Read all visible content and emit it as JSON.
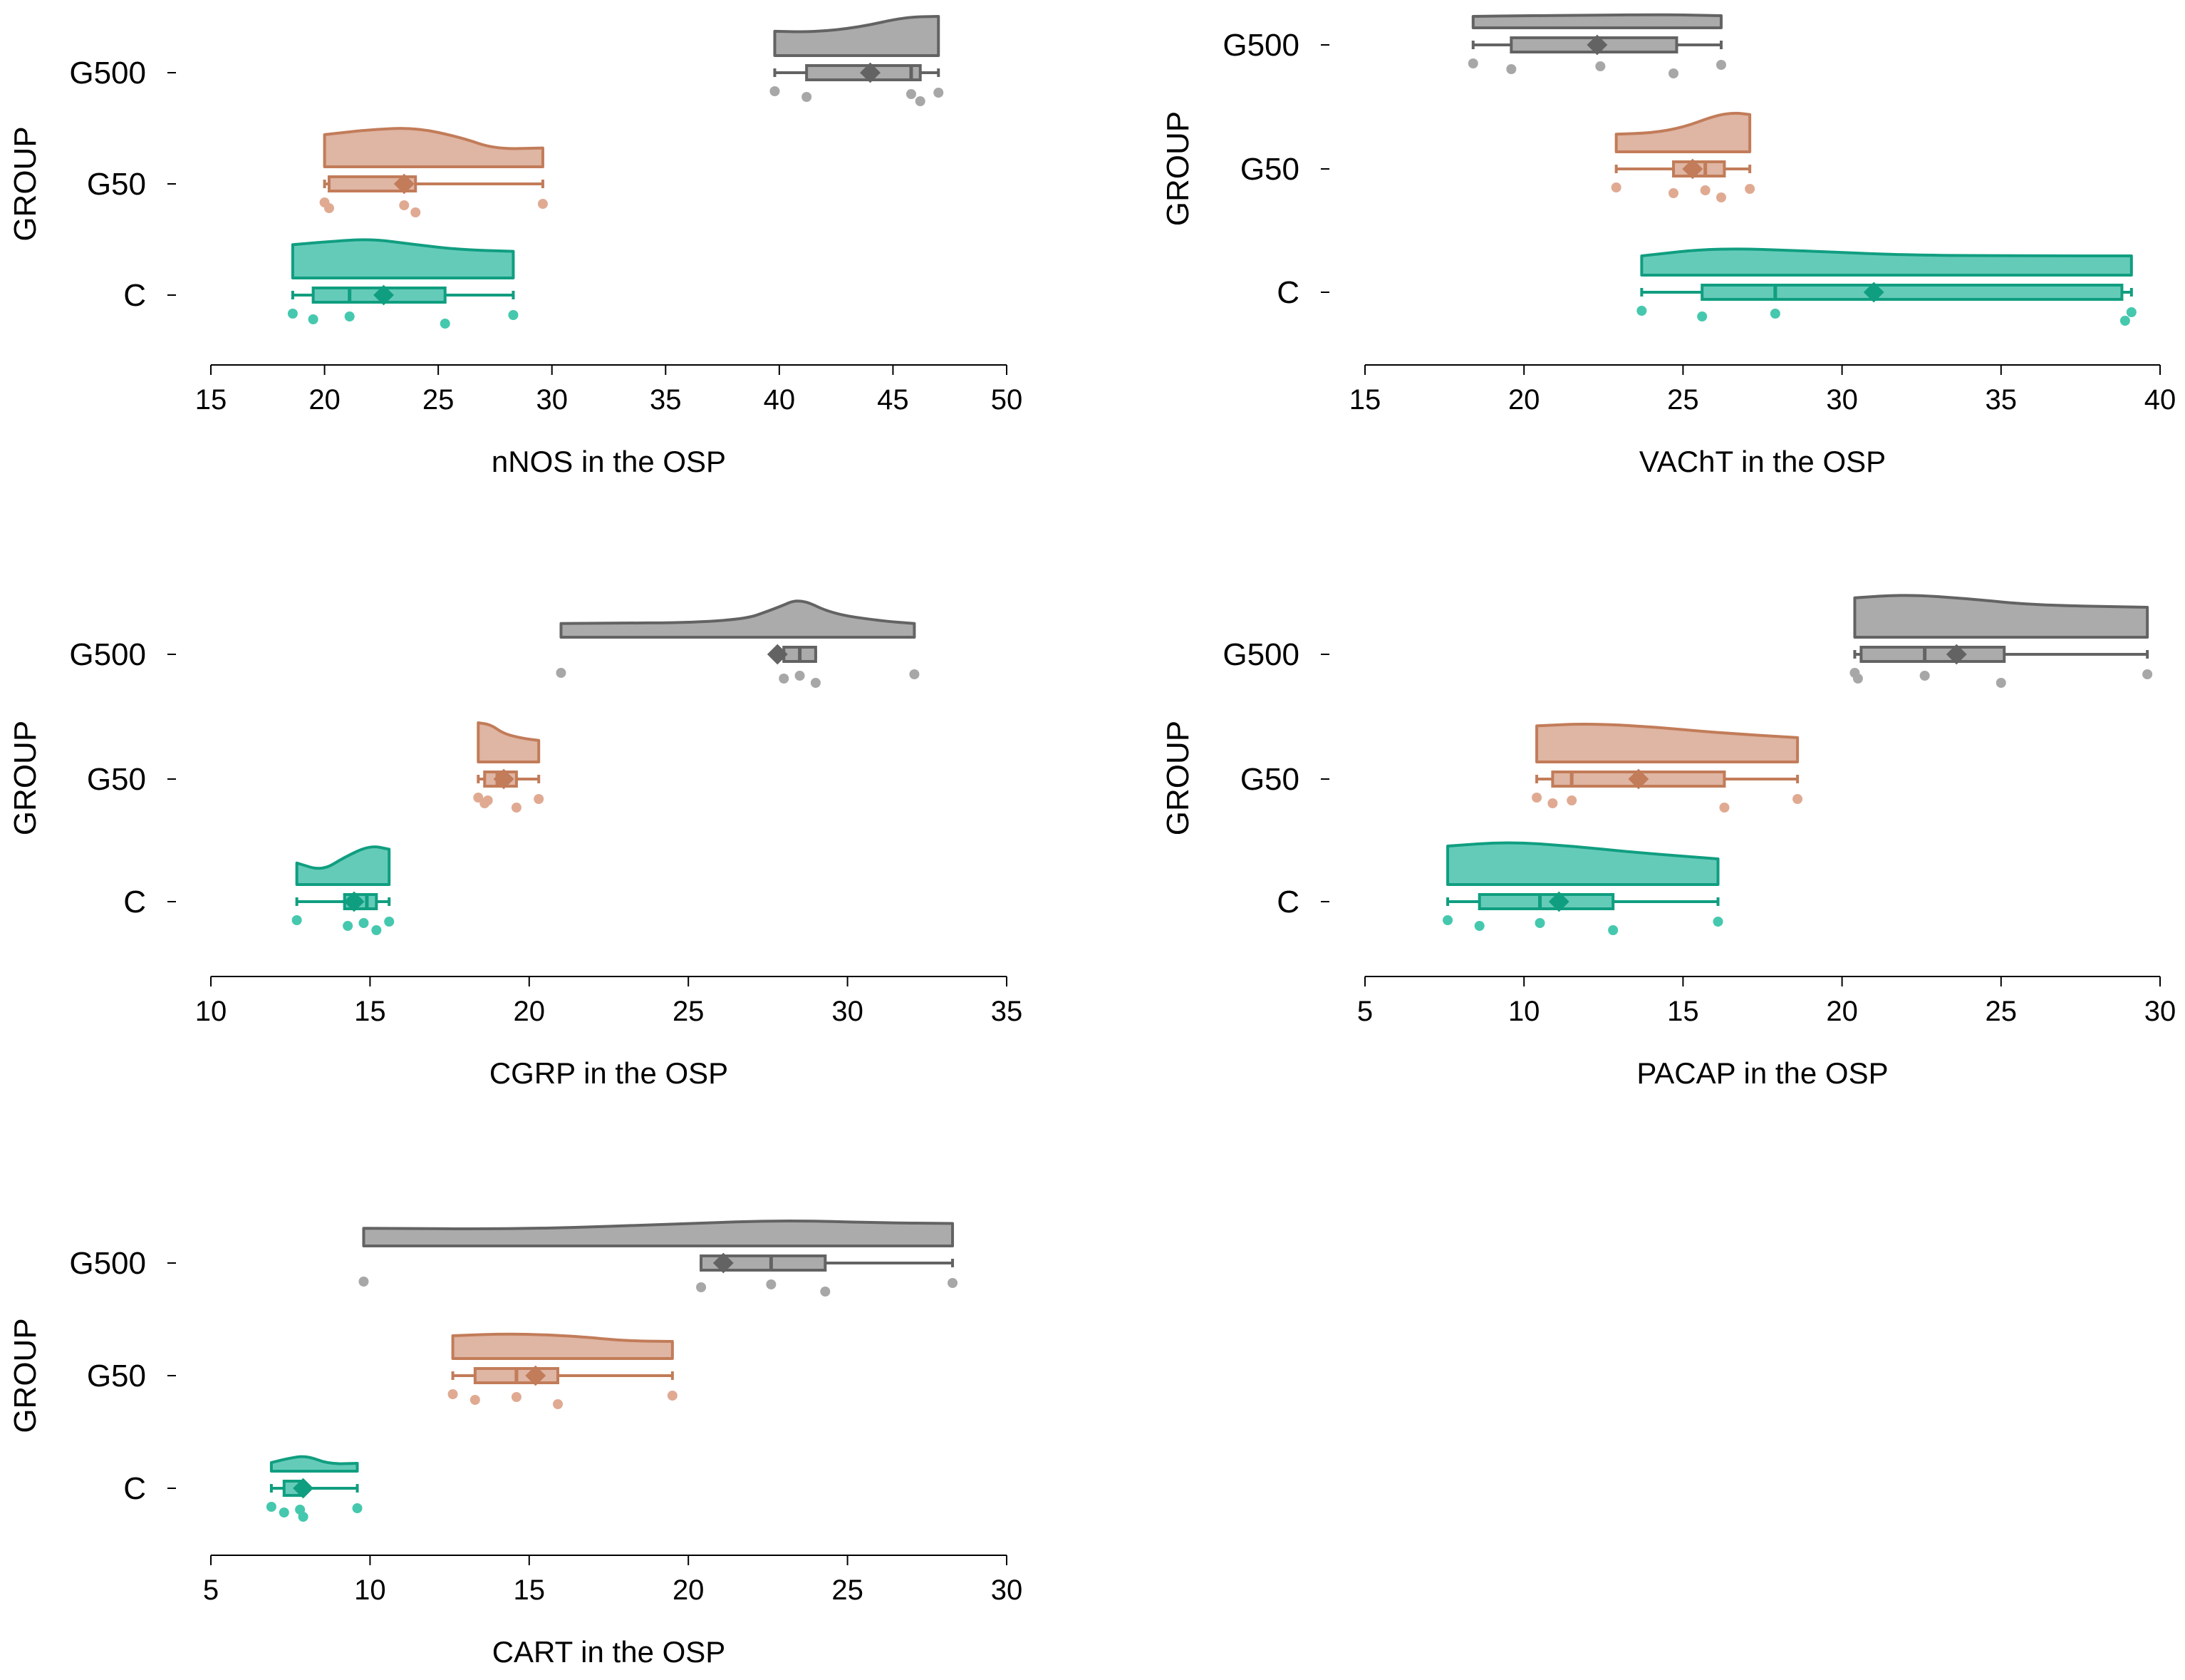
{
  "figure": {
    "group_axis_label": "GROUP",
    "colors": {
      "C": {
        "fill": "#65cbb9",
        "stroke": "#109e80",
        "point": "#45c8ae"
      },
      "G50": {
        "fill": "#dfb5a3",
        "stroke": "#c27c59",
        "point": "#e0aa92"
      },
      "G500": {
        "fill": "#ababab",
        "stroke": "#636363",
        "point": "#a7a7a7"
      },
      "axis": "#000000"
    }
  },
  "chart_data": [
    {
      "type": "raincloud",
      "xlabel": "nNOS in the OSP",
      "ylabel": "GROUP",
      "xlim": [
        15,
        50
      ],
      "xticks": [
        15,
        20,
        25,
        30,
        35,
        40,
        45,
        50
      ],
      "categories": [
        "C",
        "G50",
        "G500"
      ],
      "series": [
        {
          "name": "C",
          "points": [
            18.6,
            19.5,
            21.1,
            25.3,
            28.3
          ],
          "q1": 19.5,
          "median": 21.1,
          "q3": 25.3,
          "whisker_low": 18.6,
          "whisker_high": 28.3,
          "mean": 22.6,
          "density": [
            [
              18.6,
              0.85
            ],
            [
              20.0,
              0.92
            ],
            [
              22.0,
              1.0
            ],
            [
              24.0,
              0.85
            ],
            [
              26.0,
              0.72
            ],
            [
              28.3,
              0.68
            ]
          ]
        },
        {
          "name": "G50",
          "points": [
            20.0,
            20.2,
            23.5,
            24.0,
            29.6
          ],
          "q1": 20.2,
          "median": 23.5,
          "q3": 24.0,
          "whisker_low": 20.0,
          "whisker_high": 29.6,
          "mean": 23.5,
          "density": [
            [
              20.0,
              0.82
            ],
            [
              22.0,
              0.95
            ],
            [
              24.0,
              1.0
            ],
            [
              26.0,
              0.75
            ],
            [
              27.5,
              0.45
            ],
            [
              29.6,
              0.48
            ]
          ]
        },
        {
          "name": "G500",
          "points": [
            39.8,
            41.2,
            45.8,
            46.2,
            47.0
          ],
          "q1": 41.2,
          "median": 45.8,
          "q3": 46.2,
          "whisker_low": 39.8,
          "whisker_high": 47.0,
          "mean": 44.0,
          "density": [
            [
              39.8,
              0.62
            ],
            [
              41.5,
              0.6
            ],
            [
              43.5,
              0.72
            ],
            [
              45.5,
              0.98
            ],
            [
              47.0,
              1.0
            ]
          ]
        }
      ]
    },
    {
      "type": "raincloud",
      "xlabel": "VAChT in the OSP",
      "ylabel": "GROUP",
      "xlim": [
        15,
        40
      ],
      "xticks": [
        15,
        20,
        25,
        30,
        35,
        40
      ],
      "categories": [
        "C",
        "G50",
        "G500"
      ],
      "series": [
        {
          "name": "C",
          "points": [
            23.7,
            25.6,
            27.9,
            38.9,
            39.1
          ],
          "q1": 25.6,
          "median": 27.9,
          "q3": 38.8,
          "whisker_low": 23.7,
          "whisker_high": 39.1,
          "mean": 31.0,
          "density": [
            [
              23.7,
              0.6
            ],
            [
              26.0,
              0.85
            ],
            [
              29.0,
              0.75
            ],
            [
              32.0,
              0.62
            ],
            [
              36.0,
              0.6
            ],
            [
              39.1,
              0.6
            ]
          ]
        },
        {
          "name": "G50",
          "points": [
            22.9,
            24.7,
            25.7,
            26.2,
            27.1
          ],
          "q1": 24.7,
          "median": 25.7,
          "q3": 26.3,
          "whisker_low": 22.9,
          "whisker_high": 27.1,
          "mean": 25.3,
          "density": [
            [
              22.9,
              0.45
            ],
            [
              24.0,
              0.48
            ],
            [
              25.0,
              0.62
            ],
            [
              26.0,
              0.92
            ],
            [
              26.6,
              1.0
            ],
            [
              27.1,
              0.95
            ]
          ]
        },
        {
          "name": "G500",
          "points": [
            18.4,
            19.6,
            22.4,
            24.7,
            26.2
          ],
          "q1": 19.6,
          "median": 22.4,
          "q3": 24.8,
          "whisker_low": 18.4,
          "whisker_high": 26.2,
          "mean": 22.3,
          "density": [
            [
              18.4,
              0.8
            ],
            [
              20.0,
              0.85
            ],
            [
              22.0,
              0.88
            ],
            [
              24.0,
              0.92
            ],
            [
              25.0,
              0.9
            ],
            [
              26.2,
              0.85
            ]
          ]
        }
      ]
    },
    {
      "type": "raincloud",
      "xlabel": "CGRP in the OSP",
      "ylabel": "GROUP",
      "xlim": [
        10,
        35
      ],
      "xticks": [
        10,
        15,
        20,
        25,
        30,
        35
      ],
      "categories": [
        "C",
        "G50",
        "G500"
      ],
      "series": [
        {
          "name": "C",
          "points": [
            12.7,
            14.3,
            14.8,
            15.2,
            15.6
          ],
          "q1": 14.2,
          "median": 14.9,
          "q3": 15.2,
          "whisker_low": 12.7,
          "whisker_high": 15.6,
          "mean": 14.5,
          "density": [
            [
              12.7,
              0.55
            ],
            [
              13.5,
              0.35
            ],
            [
              14.2,
              0.7
            ],
            [
              15.0,
              1.0
            ],
            [
              15.6,
              0.9
            ]
          ]
        },
        {
          "name": "G50",
          "points": [
            18.4,
            18.6,
            18.7,
            19.6,
            20.3
          ],
          "q1": 18.6,
          "median": 19.0,
          "q3": 19.6,
          "whisker_low": 18.4,
          "whisker_high": 20.3,
          "mean": 19.2,
          "density": [
            [
              18.4,
              1.0
            ],
            [
              18.8,
              0.95
            ],
            [
              19.2,
              0.72
            ],
            [
              19.8,
              0.6
            ],
            [
              20.3,
              0.55
            ]
          ]
        },
        {
          "name": "G500",
          "points": [
            21.0,
            28.0,
            28.5,
            29.0,
            32.1
          ],
          "q1": 28.0,
          "median": 28.5,
          "q3": 29.0,
          "whisker_low": 28.0,
          "whisker_high": 29.0,
          "mean": 27.8,
          "density": [
            [
              21.0,
              0.35
            ],
            [
              26.5,
              0.38
            ],
            [
              27.8,
              0.75
            ],
            [
              28.5,
              1.0
            ],
            [
              29.5,
              0.6
            ],
            [
              31.0,
              0.42
            ],
            [
              32.1,
              0.35
            ]
          ]
        }
      ]
    },
    {
      "type": "raincloud",
      "xlabel": "PACAP in the OSP",
      "ylabel": "GROUP",
      "xlim": [
        5,
        30
      ],
      "xticks": [
        5,
        10,
        15,
        20,
        25,
        30
      ],
      "categories": [
        "C",
        "G50",
        "G500"
      ],
      "series": [
        {
          "name": "C",
          "points": [
            7.6,
            8.6,
            10.5,
            12.8,
            16.1
          ],
          "q1": 8.6,
          "median": 10.5,
          "q3": 12.8,
          "whisker_low": 7.6,
          "whisker_high": 16.1,
          "mean": 11.1,
          "density": [
            [
              7.6,
              0.9
            ],
            [
              9.5,
              1.0
            ],
            [
              11.5,
              0.9
            ],
            [
              13.5,
              0.75
            ],
            [
              16.1,
              0.6
            ]
          ]
        },
        {
          "name": "G50",
          "points": [
            10.4,
            10.9,
            11.5,
            16.3,
            18.6
          ],
          "q1": 10.9,
          "median": 11.5,
          "q3": 16.3,
          "whisker_low": 10.4,
          "whisker_high": 18.6,
          "mean": 13.6,
          "density": [
            [
              10.4,
              0.92
            ],
            [
              12.0,
              0.98
            ],
            [
              14.0,
              0.9
            ],
            [
              16.0,
              0.75
            ],
            [
              18.6,
              0.62
            ]
          ]
        },
        {
          "name": "G500",
          "points": [
            20.4,
            20.5,
            22.6,
            25.0,
            29.6
          ],
          "q1": 20.6,
          "median": 22.6,
          "q3": 25.1,
          "whisker_low": 20.4,
          "whisker_high": 29.6,
          "mean": 23.6,
          "density": [
            [
              20.4,
              0.92
            ],
            [
              22.0,
              1.0
            ],
            [
              24.0,
              0.9
            ],
            [
              26.0,
              0.75
            ],
            [
              29.6,
              0.7
            ]
          ]
        }
      ]
    },
    {
      "type": "raincloud",
      "xlabel": "CART in the OSP",
      "ylabel": "GROUP",
      "xlim": [
        5,
        30
      ],
      "xticks": [
        5,
        10,
        15,
        20,
        25,
        30
      ],
      "categories": [
        "C",
        "G50",
        "G500"
      ],
      "series": [
        {
          "name": "C",
          "points": [
            6.9,
            7.3,
            7.8,
            7.9,
            9.6
          ],
          "q1": 7.3,
          "median": 7.8,
          "q3": 7.9,
          "whisker_low": 6.9,
          "whisker_high": 9.6,
          "mean": 7.9,
          "density": [
            [
              6.9,
              0.55
            ],
            [
              7.4,
              0.8
            ],
            [
              8.0,
              1.0
            ],
            [
              8.7,
              0.45
            ],
            [
              9.6,
              0.5
            ]
          ]
        },
        {
          "name": "G50",
          "points": [
            12.6,
            13.3,
            14.6,
            15.9,
            19.5
          ],
          "q1": 13.3,
          "median": 14.6,
          "q3": 15.9,
          "whisker_low": 12.6,
          "whisker_high": 19.5,
          "mean": 15.2,
          "density": [
            [
              12.6,
              0.8
            ],
            [
              14.5,
              0.88
            ],
            [
              16.5,
              0.78
            ],
            [
              18.0,
              0.62
            ],
            [
              19.5,
              0.6
            ]
          ]
        },
        {
          "name": "G500",
          "points": [
            9.8,
            20.4,
            22.6,
            24.3,
            28.3
          ],
          "q1": 20.4,
          "median": 22.6,
          "q3": 24.3,
          "whisker_low": 20.4,
          "whisker_high": 28.3,
          "mean": 21.1,
          "density": [
            [
              9.8,
              0.55
            ],
            [
              15.0,
              0.52
            ],
            [
              20.0,
              0.7
            ],
            [
              23.0,
              0.8
            ],
            [
              26.0,
              0.72
            ],
            [
              28.3,
              0.7
            ]
          ]
        }
      ]
    }
  ]
}
